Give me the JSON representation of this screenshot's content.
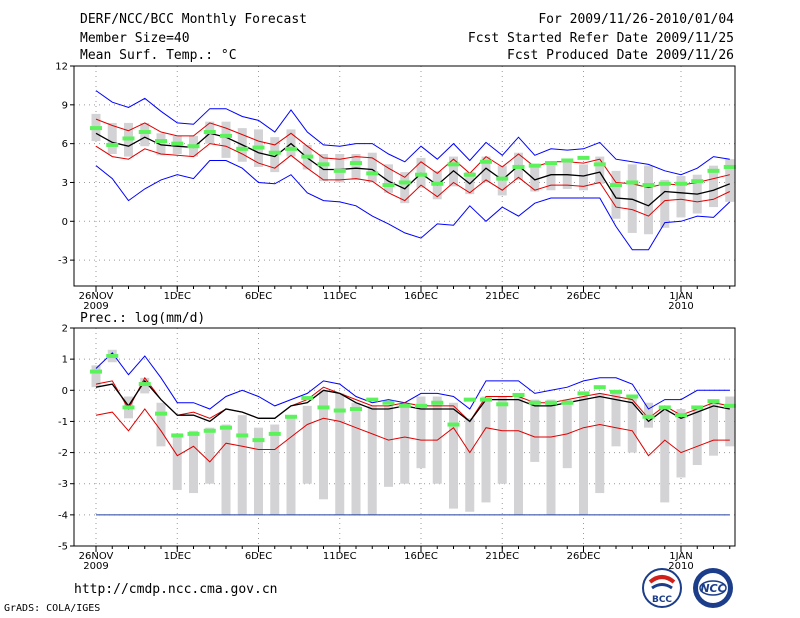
{
  "header": {
    "title": "DERF/NCC/BCC Monthly Forecast",
    "member_size": "Member Size=40",
    "variable": "Mean Surf. Temp.: °C",
    "period": "For 2009/11/26-2010/01/04",
    "start_date": "Fcst Started Refer Date 2009/11/25",
    "produced_date": "Fcst Produced Date 2009/11/26"
  },
  "footer": {
    "url": "http://cmdp.ncc.cma.gov.cn",
    "credit": "GrADS: COLA/IGES",
    "logo_bcc": "BCC",
    "logo_ncc": "NCC"
  },
  "colors": {
    "ensemble_range": "#0000ff",
    "spread_band": "#e00000",
    "ensemble_mean": "#000000",
    "member_box": "#d3d3d6",
    "median_marker": "#5cf25c",
    "grid": "#9a9a9a",
    "threshold_line": "#1f3fa0"
  },
  "chart_data": [
    {
      "type": "line",
      "title": "Mean Surf. Temp.: °C",
      "ylim": [
        -5,
        12
      ],
      "yticks": [
        -3,
        0,
        3,
        6,
        9,
        12
      ],
      "xlabel": "",
      "ylabel": "°C",
      "grid": true,
      "x_days": [
        0,
        1,
        2,
        3,
        4,
        5,
        6,
        7,
        8,
        9,
        10,
        11,
        12,
        13,
        14,
        15,
        16,
        17,
        18,
        19,
        20,
        21,
        22,
        23,
        24,
        25,
        26,
        27,
        28,
        29,
        30,
        31,
        32,
        33,
        34,
        35,
        36,
        37,
        38,
        39
      ],
      "xticks": [
        {
          "day": 0,
          "label": "26NOV",
          "sub": "2009"
        },
        {
          "day": 5,
          "label": "1DEC",
          "sub": ""
        },
        {
          "day": 10,
          "label": "6DEC",
          "sub": ""
        },
        {
          "day": 15,
          "label": "11DEC",
          "sub": ""
        },
        {
          "day": 20,
          "label": "16DEC",
          "sub": ""
        },
        {
          "day": 25,
          "label": "21DEC",
          "sub": ""
        },
        {
          "day": 30,
          "label": "26DEC",
          "sub": ""
        },
        {
          "day": 36,
          "label": "1JAN",
          "sub": "2010"
        }
      ],
      "series": [
        {
          "name": "ensemble max",
          "role": "max",
          "values": [
            10.1,
            9.2,
            8.8,
            9.5,
            8.5,
            7.6,
            7.5,
            8.7,
            8.7,
            8.1,
            7.8,
            6.9,
            8.6,
            6.9,
            5.9,
            5.8,
            6.0,
            6.0,
            5.2,
            4.6,
            5.8,
            4.8,
            6.0,
            4.7,
            6.1,
            5.1,
            6.5,
            5.1,
            5.6,
            5.5,
            5.6,
            6.1,
            4.8,
            4.6,
            4.4,
            3.9,
            3.6,
            4.1,
            5.0,
            4.8
          ]
        },
        {
          "name": "mean + spread",
          "role": "upper",
          "values": [
            7.9,
            7.4,
            7.0,
            7.6,
            6.9,
            6.6,
            6.6,
            7.6,
            7.2,
            6.7,
            6.2,
            5.9,
            6.8,
            5.8,
            4.9,
            4.8,
            5.0,
            4.9,
            4.1,
            3.4,
            4.6,
            3.7,
            4.8,
            3.7,
            5.0,
            4.2,
            5.2,
            4.2,
            4.6,
            4.6,
            4.5,
            4.8,
            3.0,
            2.9,
            2.6,
            2.9,
            2.8,
            3.0,
            3.3,
            3.6
          ]
        },
        {
          "name": "ensemble mean",
          "role": "mean",
          "values": [
            6.8,
            6.1,
            5.8,
            6.5,
            5.9,
            5.8,
            5.7,
            6.8,
            6.5,
            5.9,
            5.3,
            5.0,
            6.0,
            4.9,
            4.0,
            4.0,
            4.1,
            4.0,
            3.1,
            2.5,
            3.7,
            2.8,
            3.9,
            2.9,
            4.1,
            3.2,
            4.3,
            3.2,
            3.6,
            3.6,
            3.5,
            3.8,
            1.8,
            1.7,
            1.2,
            2.3,
            2.2,
            2.1,
            2.4,
            2.9
          ]
        },
        {
          "name": "mean - spread",
          "role": "lower",
          "values": [
            5.8,
            5.0,
            4.8,
            5.6,
            5.2,
            5.1,
            5.0,
            6.0,
            5.8,
            5.2,
            4.5,
            4.1,
            5.1,
            4.1,
            3.2,
            3.2,
            3.3,
            3.1,
            2.2,
            1.6,
            2.8,
            1.9,
            3.0,
            2.2,
            3.2,
            2.4,
            3.4,
            2.4,
            2.8,
            2.8,
            2.7,
            3.0,
            1.1,
            0.9,
            0.4,
            1.6,
            1.7,
            1.5,
            1.7,
            2.3
          ]
        },
        {
          "name": "ensemble min",
          "role": "min",
          "values": [
            4.3,
            3.3,
            1.6,
            2.5,
            3.2,
            3.6,
            3.3,
            4.7,
            4.7,
            4.1,
            3.0,
            2.9,
            3.6,
            2.2,
            1.6,
            1.5,
            1.2,
            0.4,
            -0.2,
            -0.9,
            -1.3,
            -0.2,
            -0.3,
            1.2,
            0.0,
            1.1,
            0.4,
            1.4,
            1.8,
            1.8,
            1.8,
            1.8,
            -0.4,
            -2.2,
            -2.2,
            -0.1,
            0.0,
            0.4,
            0.3,
            1.5
          ]
        }
      ],
      "boxes": {
        "low": [
          6.2,
          5.2,
          5.0,
          5.8,
          5.1,
          5.2,
          5.0,
          6.0,
          4.9,
          4.6,
          4.2,
          3.8,
          5.0,
          4.0,
          3.1,
          3.0,
          3.2,
          3.0,
          2.2,
          1.4,
          2.6,
          1.7,
          2.7,
          2.1,
          3.0,
          2.0,
          3.2,
          2.3,
          2.4,
          2.5,
          2.4,
          2.9,
          0.2,
          -0.9,
          -1.0,
          -0.5,
          0.3,
          0.6,
          1.1,
          1.5
        ],
        "high": [
          8.3,
          7.6,
          7.6,
          7.6,
          6.8,
          6.6,
          6.6,
          7.7,
          7.7,
          7.2,
          7.1,
          6.5,
          7.1,
          5.9,
          5.2,
          5.2,
          5.2,
          5.3,
          4.4,
          3.8,
          4.9,
          3.9,
          5.0,
          3.8,
          5.0,
          4.3,
          5.3,
          4.3,
          4.6,
          4.6,
          4.4,
          5.0,
          3.9,
          4.4,
          4.3,
          3.2,
          3.5,
          3.6,
          4.3,
          4.8
        ],
        "median": [
          7.2,
          5.9,
          6.4,
          6.9,
          6.2,
          6.0,
          5.8,
          6.9,
          6.6,
          5.6,
          5.7,
          5.3,
          5.6,
          5.0,
          4.4,
          3.9,
          4.5,
          3.7,
          2.8,
          3.0,
          3.6,
          2.9,
          4.4,
          3.6,
          4.6,
          3.3,
          4.2,
          4.3,
          4.5,
          4.7,
          4.9,
          4.4,
          2.8,
          3.0,
          2.8,
          2.9,
          2.9,
          3.1,
          3.9,
          4.2
        ]
      }
    },
    {
      "type": "line",
      "title": "Prec.: log(mm/d)",
      "ylim": [
        -5,
        2
      ],
      "yticks": [
        -5,
        -4,
        -3,
        -2,
        -1,
        0,
        1,
        2
      ],
      "xlabel": "",
      "ylabel": "log(mm/d)",
      "grid": true,
      "threshold": -4,
      "x_days": [
        0,
        1,
        2,
        3,
        4,
        5,
        6,
        7,
        8,
        9,
        10,
        11,
        12,
        13,
        14,
        15,
        16,
        17,
        18,
        19,
        20,
        21,
        22,
        23,
        24,
        25,
        26,
        27,
        28,
        29,
        30,
        31,
        32,
        33,
        34,
        35,
        36,
        37,
        38,
        39
      ],
      "xticks": [
        {
          "day": 0,
          "label": "26NOV",
          "sub": "2009"
        },
        {
          "day": 5,
          "label": "1DEC",
          "sub": ""
        },
        {
          "day": 10,
          "label": "6DEC",
          "sub": ""
        },
        {
          "day": 15,
          "label": "11DEC",
          "sub": ""
        },
        {
          "day": 20,
          "label": "16DEC",
          "sub": ""
        },
        {
          "day": 25,
          "label": "21DEC",
          "sub": ""
        },
        {
          "day": 30,
          "label": "26DEC",
          "sub": ""
        },
        {
          "day": 36,
          "label": "1JAN",
          "sub": "2010"
        }
      ],
      "series": [
        {
          "name": "ensemble max",
          "role": "max",
          "values": [
            0.7,
            1.2,
            0.5,
            1.1,
            0.4,
            -0.4,
            -0.4,
            -0.6,
            -0.2,
            0.0,
            -0.2,
            -0.5,
            -0.3,
            -0.1,
            0.3,
            0.2,
            -0.2,
            -0.4,
            -0.3,
            -0.4,
            -0.1,
            -0.1,
            -0.2,
            -0.6,
            0.3,
            0.3,
            0.3,
            -0.1,
            0.0,
            0.1,
            0.3,
            0.4,
            0.4,
            0.2,
            -0.6,
            -0.3,
            -0.3,
            0.0,
            0.0,
            0.0
          ]
        },
        {
          "name": "mean + spread",
          "role": "upper",
          "values": [
            0.2,
            0.3,
            -0.6,
            0.4,
            -0.3,
            -0.8,
            -0.7,
            -0.9,
            -0.6,
            -0.7,
            -0.9,
            -0.9,
            -0.5,
            -0.3,
            0.1,
            -0.1,
            -0.3,
            -0.5,
            -0.5,
            -0.4,
            -0.5,
            -0.5,
            -0.5,
            -1.0,
            -0.2,
            -0.2,
            -0.2,
            -0.4,
            -0.4,
            -0.3,
            -0.2,
            -0.1,
            -0.2,
            -0.3,
            -0.9,
            -0.5,
            -0.8,
            -0.6,
            -0.4,
            -0.5
          ]
        },
        {
          "name": "ensemble mean",
          "role": "mean",
          "values": [
            0.1,
            0.2,
            -0.5,
            0.3,
            -0.3,
            -0.8,
            -0.8,
            -1.0,
            -0.6,
            -0.7,
            -0.9,
            -0.9,
            -0.5,
            -0.4,
            0.0,
            -0.1,
            -0.4,
            -0.6,
            -0.6,
            -0.5,
            -0.6,
            -0.6,
            -0.6,
            -1.0,
            -0.3,
            -0.3,
            -0.3,
            -0.5,
            -0.5,
            -0.4,
            -0.3,
            -0.2,
            -0.3,
            -0.4,
            -1.0,
            -0.6,
            -0.9,
            -0.7,
            -0.5,
            -0.6
          ]
        },
        {
          "name": "mean - spread",
          "role": "lower",
          "values": [
            -0.8,
            -0.7,
            -1.3,
            -0.6,
            -1.3,
            -2.1,
            -1.8,
            -2.3,
            -1.7,
            -1.8,
            -1.9,
            -1.9,
            -1.5,
            -1.1,
            -0.9,
            -1.0,
            -1.2,
            -1.4,
            -1.6,
            -1.5,
            -1.6,
            -1.6,
            -1.2,
            -2.0,
            -1.2,
            -1.3,
            -1.3,
            -1.5,
            -1.5,
            -1.4,
            -1.2,
            -1.1,
            -1.2,
            -1.3,
            -2.1,
            -1.6,
            -2.0,
            -1.8,
            -1.6,
            -1.6
          ]
        },
        {
          "name": "ensemble min",
          "role": "min",
          "values": [
            -4.0,
            -4.0,
            -4.0,
            -4.0,
            -4.0,
            -4.0,
            -4.0,
            -4.0,
            -4.0,
            -4.0,
            -4.0,
            -4.0,
            -4.0,
            -4.0,
            -4.0,
            -4.0,
            -4.0,
            -4.0,
            -4.0,
            -4.0,
            -4.0,
            -4.0,
            -4.0,
            -4.0,
            -4.0,
            -4.0,
            -4.0,
            -4.0,
            -4.0,
            -4.0,
            -4.0,
            -4.0,
            -4.0,
            -4.0,
            -4.0,
            -4.0,
            -4.0,
            -4.0,
            -4.0,
            -4.0
          ]
        }
      ],
      "boxes": {
        "low": [
          0.1,
          0.9,
          -0.9,
          -0.1,
          -1.8,
          -3.2,
          -3.3,
          -3.0,
          -4.0,
          -4.0,
          -4.0,
          -4.0,
          -4.0,
          -3.0,
          -3.5,
          -4.0,
          -4.0,
          -4.0,
          -3.1,
          -3.0,
          -2.5,
          -3.0,
          -3.8,
          -3.9,
          -3.6,
          -3.0,
          -4.0,
          -2.3,
          -4.0,
          -2.5,
          -4.0,
          -3.3,
          -1.8,
          -2.0,
          -1.2,
          -3.6,
          -2.8,
          -2.4,
          -2.1,
          -1.8
        ],
        "high": [
          0.8,
          1.3,
          -0.2,
          0.4,
          -0.4,
          -1.4,
          -1.3,
          -1.2,
          -1.1,
          -0.8,
          -1.2,
          -1.1,
          -0.8,
          -0.5,
          0.0,
          -0.1,
          -0.4,
          -0.5,
          -0.5,
          -0.4,
          -0.2,
          -0.2,
          -0.4,
          -0.9,
          -0.2,
          -0.2,
          -0.2,
          -0.3,
          -0.3,
          -0.3,
          -0.2,
          -0.1,
          0.0,
          -0.2,
          -0.4,
          -0.5,
          -0.6,
          -0.6,
          -0.3,
          -0.2
        ],
        "median": [
          0.6,
          1.1,
          -0.55,
          0.2,
          -0.75,
          -1.45,
          -1.4,
          -1.3,
          -1.2,
          -1.45,
          -1.6,
          -1.4,
          -0.85,
          -0.25,
          -0.55,
          -0.65,
          -0.6,
          -0.3,
          -0.4,
          -0.5,
          -0.5,
          -0.4,
          -1.1,
          -0.3,
          -0.3,
          -0.45,
          -0.15,
          -0.4,
          -0.4,
          -0.4,
          -0.1,
          0.1,
          -0.05,
          -0.2,
          -0.85,
          -0.55,
          -0.8,
          -0.55,
          -0.35,
          -0.5
        ]
      }
    }
  ]
}
